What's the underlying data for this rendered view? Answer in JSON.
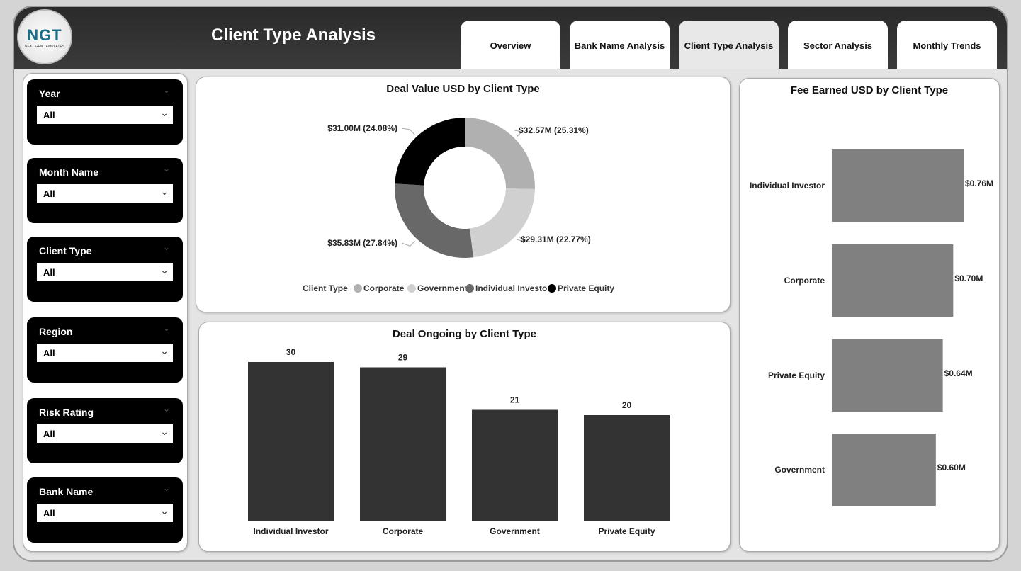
{
  "header": {
    "title": "Client Type Analysis",
    "logo_text": "NGT",
    "logo_subtext": "NEXT GEN TEMPLATES"
  },
  "tabs": [
    {
      "label": "Overview"
    },
    {
      "label": "Bank Name Analysis"
    },
    {
      "label": "Client Type Analysis",
      "active": true
    },
    {
      "label": "Sector Analysis"
    },
    {
      "label": "Monthly Trends"
    }
  ],
  "slicers": [
    {
      "label": "Year",
      "value": "All"
    },
    {
      "label": "Month Name",
      "value": "All"
    },
    {
      "label": "Client Type",
      "value": "All"
    },
    {
      "label": "Region",
      "value": "All"
    },
    {
      "label": "Risk Rating",
      "value": "All"
    },
    {
      "label": "Bank Name",
      "value": "All"
    }
  ],
  "chart_data": [
    {
      "type": "pie",
      "title": "Deal Value USD by Client Type",
      "legend_title": "Client Type",
      "legend_position": "bottom",
      "categories": [
        "Corporate",
        "Government",
        "Individual Investor",
        "Private Equity"
      ],
      "values": [
        32.57,
        29.31,
        35.83,
        31.0
      ],
      "labels": [
        "$32.57M (25.31%)",
        "$29.31M (22.77%)",
        "$35.83M (27.84%)",
        "$31.00M (24.08%)"
      ],
      "percents": [
        25.31,
        22.77,
        27.84,
        24.08
      ],
      "colors": [
        "#b0b0b0",
        "#d0d0d0",
        "#686868",
        "#000000"
      ]
    },
    {
      "type": "bar",
      "title": "Deal Ongoing by Client Type",
      "categories": [
        "Individual Investor",
        "Corporate",
        "Government",
        "Private Equity"
      ],
      "values": [
        30,
        29,
        21,
        20
      ],
      "color": "#333333",
      "ylim": [
        0,
        30
      ]
    },
    {
      "type": "bar",
      "orientation": "horizontal",
      "title": "Fee Earned USD by Client Type",
      "categories": [
        "Individual Investor",
        "Corporate",
        "Private Equity",
        "Government"
      ],
      "values": [
        0.76,
        0.7,
        0.64,
        0.6
      ],
      "labels": [
        "$0.76M",
        "$0.70M",
        "$0.64M",
        "$0.60M"
      ],
      "color": "#808080",
      "xlim": [
        0,
        0.76
      ]
    }
  ]
}
